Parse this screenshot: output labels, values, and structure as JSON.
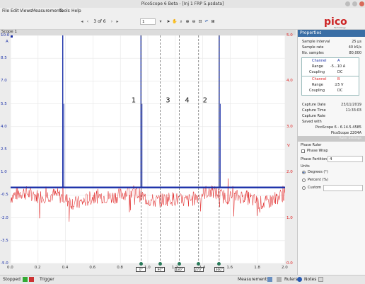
{
  "window": {
    "title": "PicoScope 6 Beta - [Inj 1 FRP 5.psdata]"
  },
  "menu": [
    "File",
    "Edit",
    "Views",
    "Measurements",
    "Tools",
    "Help"
  ],
  "toolbar": {
    "capture_of": "3 of 6",
    "zoom": "1",
    "logo": "pico",
    "logo_sub": "Technology"
  },
  "scope_tab": "Scope 1",
  "plot": {
    "left_axis_unit": "A",
    "left_ticks": [
      "10.0",
      "8.5",
      "7.0",
      "5.5",
      "4.0",
      "2.5",
      "1.0",
      "-0.5",
      "-2.0",
      "-3.5",
      "-5.0"
    ],
    "right_axis_unit": "V",
    "right_ticks": [
      "5.0",
      "4.0",
      "3.0",
      "2.0",
      "1.0",
      "0.0"
    ],
    "x_ticks": [
      "0.0",
      "0.2",
      "0.4",
      "0.6",
      "0.8",
      "1.0",
      "1.2",
      "1.4",
      "1.6",
      "1.8",
      "2.0"
    ],
    "x_unit": "s",
    "annotations": [
      "1",
      "3",
      "4",
      "2"
    ],
    "ruler_tags": [
      "0°",
      "90°",
      "180°",
      "270°",
      "360°"
    ],
    "colors": {
      "channel_a": "#1a2fa8",
      "channel_b": "#e02020",
      "ruler": "#444444",
      "rule_node": "#2a7a5a"
    }
  },
  "chart_data": {
    "type": "line",
    "x_unit": "s",
    "xlim": [
      0,
      2.0
    ],
    "series": [
      {
        "name": "Channel A",
        "unit": "A",
        "ylim": [
          -5.0,
          10.0
        ],
        "baseline": 0.0,
        "pulses_x": [
          0.38,
          0.95,
          1.52
        ],
        "pulse_peak": 10.0
      },
      {
        "name": "Channel B",
        "unit": "V",
        "ylim": [
          0.0,
          5.0
        ],
        "mean": 1.45
      }
    ],
    "phase_rulers_x": [
      0.95,
      1.09,
      1.23,
      1.37,
      1.52
    ]
  },
  "properties": {
    "title": "Properties",
    "sample_interval_label": "Sample interval",
    "sample_interval": "25 µs",
    "sample_rate_label": "Sample rate",
    "sample_rate": "40 kS/s",
    "no_samples_label": "No. samples",
    "no_samples": "80,000",
    "chA": {
      "channel_label": "Channel",
      "channel": "A",
      "range_label": "Range",
      "range": "-5...10 A",
      "coupling_label": "Coupling",
      "coupling": "DC"
    },
    "chB": {
      "channel_label": "Channel",
      "channel": "B",
      "range_label": "Range",
      "range": "±5 V",
      "coupling_label": "Coupling",
      "coupling": "DC"
    },
    "capture_date_label": "Capture Date",
    "capture_date": "23/11/2019",
    "capture_time_label": "Capture Time",
    "capture_time": "11:33:03",
    "capture_rate_label": "Capture Rate",
    "saved_with_label": "Saved with",
    "saved_with": "PicoScope 6 - 6.14.5.4585",
    "device": "PicoScope 2204A",
    "ruler_settings": "Ruler Settings",
    "phase_ruler": "Phase Ruler",
    "phase_wrap": "Phase Wrap",
    "phase_partition_label": "Phase Partition",
    "phase_partition": "4",
    "units_label": "Units",
    "degrees": "Degrees (°)",
    "percent": "Percent (%)",
    "custom": "Custom"
  },
  "status": {
    "stopped": "Stopped",
    "trigger": "Trigger",
    "measurements": "Measurements",
    "rulers": "Rulers",
    "notes": "Notes"
  }
}
